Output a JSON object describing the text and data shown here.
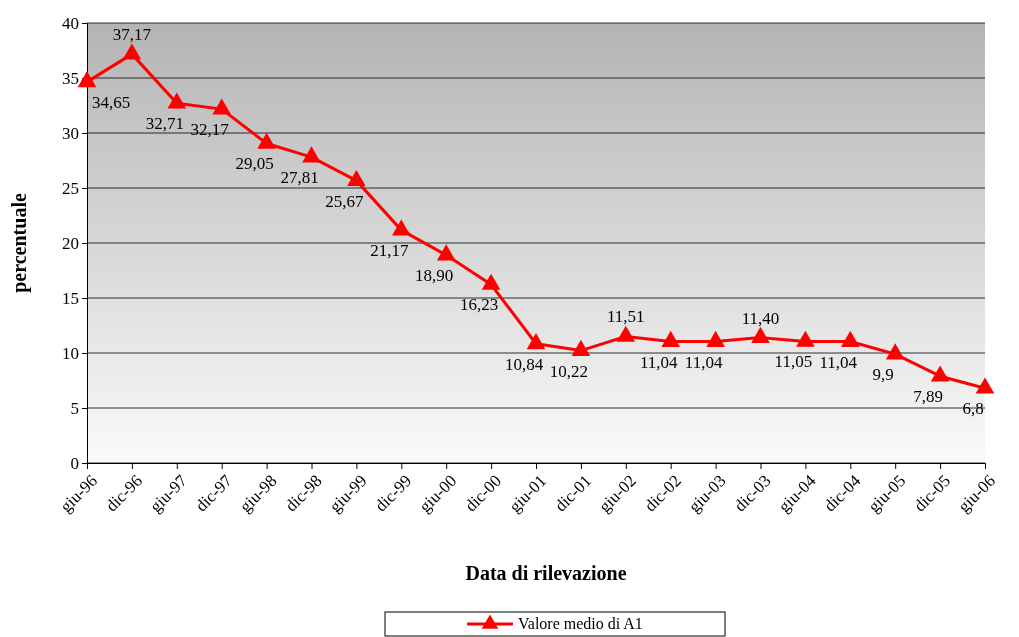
{
  "chart_data": {
    "type": "line",
    "xlabel": "Data di rilevazione",
    "ylabel": "percentuale",
    "categories": [
      "giu-96",
      "dic-96",
      "giu-97",
      "dic-97",
      "giu-98",
      "dic-98",
      "giu-99",
      "dic-99",
      "giu-00",
      "dic-00",
      "giu-01",
      "dic-01",
      "giu-02",
      "dic-02",
      "giu-03",
      "dic-03",
      "giu-04",
      "dic-04",
      "giu-05",
      "dic-05",
      "giu-06"
    ],
    "series": [
      {
        "name": "Valore medio di A1",
        "color": "#ff0000",
        "values": [
          34.65,
          37.17,
          32.71,
          32.17,
          29.05,
          27.81,
          25.67,
          21.17,
          18.9,
          16.23,
          10.84,
          10.22,
          11.51,
          11.04,
          11.04,
          11.4,
          11.05,
          11.04,
          9.9,
          7.89,
          6.8
        ],
        "value_labels": [
          "34,65",
          "37,17",
          "32,71",
          "32,17",
          "29,05",
          "27,81",
          "25,67",
          "21,17",
          "18,90",
          "16,23",
          "10,84",
          "10,22",
          "11,51",
          "11,04",
          "11,04",
          "11,40",
          "11,05",
          "11,04",
          "9,9",
          "7,89",
          "6,8"
        ]
      }
    ],
    "ylim": [
      0,
      40
    ],
    "yticks": [
      0,
      5,
      10,
      15,
      20,
      25,
      30,
      35,
      40
    ],
    "grid": "y",
    "legend": "bottom",
    "marker": "triangle",
    "line_style": "solid"
  }
}
